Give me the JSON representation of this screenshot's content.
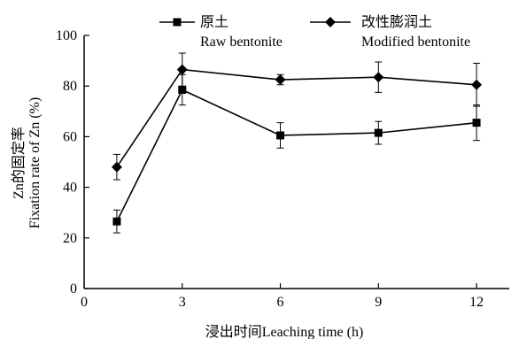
{
  "chart_data": {
    "type": "line",
    "xlabel": "浸出时间Leaching time (h)",
    "ylabel_cn": "Zn的固定率",
    "ylabel_en": "Fixation rate of Zn (%)",
    "xlim": [
      0,
      13
    ],
    "ylim": [
      0,
      100
    ],
    "xticks": [
      0,
      3,
      6,
      9,
      12
    ],
    "yticks": [
      0,
      20,
      40,
      60,
      80,
      100
    ],
    "grid": false,
    "legend_position": "top",
    "series": [
      {
        "name_cn": "原土",
        "name_en": "Raw bentonite",
        "marker": "square",
        "color": "#000000",
        "x": [
          1,
          3,
          6,
          9,
          12
        ],
        "y": [
          26.5,
          78.5,
          60.5,
          61.5,
          65.5
        ],
        "err": [
          4.5,
          6.0,
          5.0,
          4.5,
          7.0
        ]
      },
      {
        "name_cn": "改性膨润土",
        "name_en": "Modified bentonite",
        "marker": "diamond",
        "color": "#000000",
        "x": [
          1,
          3,
          6,
          9,
          12
        ],
        "y": [
          48.0,
          86.5,
          82.5,
          83.5,
          80.5
        ],
        "err": [
          5.0,
          6.5,
          2.0,
          6.0,
          8.5
        ]
      }
    ]
  }
}
